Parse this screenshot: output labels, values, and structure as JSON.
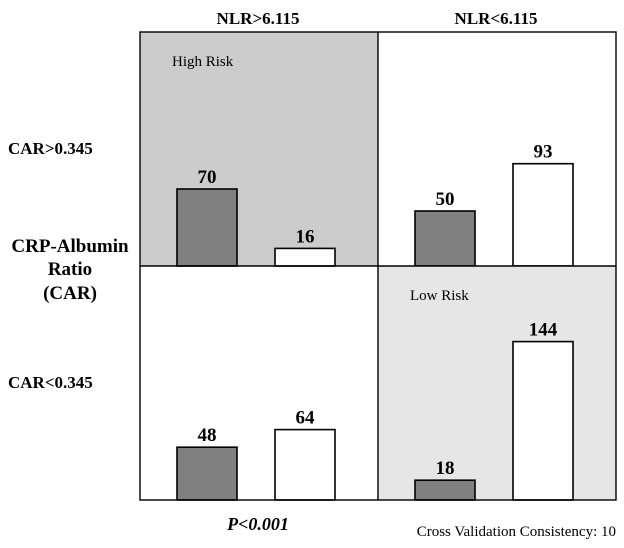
{
  "chart_data": {
    "type": "bar",
    "columns": [
      "NLR>6.115",
      "NLR<6.115"
    ],
    "rows": [
      "CAR>0.345",
      "CAR<0.345"
    ],
    "row_axis_title": [
      "CRP-Albumin",
      "Ratio",
      "(CAR)"
    ],
    "cells": [
      {
        "row": "CAR>0.345",
        "col": "NLR>6.115",
        "label": "High Risk",
        "shaded": "#cccccc",
        "series": [
          {
            "name": "dark",
            "value": 70
          },
          {
            "name": "light",
            "value": 16
          }
        ]
      },
      {
        "row": "CAR>0.345",
        "col": "NLR<6.115",
        "label": "",
        "shaded": null,
        "series": [
          {
            "name": "dark",
            "value": 50
          },
          {
            "name": "light",
            "value": 93
          }
        ]
      },
      {
        "row": "CAR<0.345",
        "col": "NLR>6.115",
        "label": "",
        "shaded": null,
        "series": [
          {
            "name": "dark",
            "value": 48
          },
          {
            "name": "light",
            "value": 64
          }
        ]
      },
      {
        "row": "CAR<0.345",
        "col": "NLR<6.115",
        "label": "Low Risk",
        "shaded": "#e6e6e6",
        "series": [
          {
            "name": "dark",
            "value": 18
          },
          {
            "name": "light",
            "value": 144
          }
        ]
      }
    ],
    "bar_colors": {
      "dark": "#808080",
      "light": "#ffffff"
    },
    "ylim": [
      0,
      160
    ]
  },
  "footer": {
    "p_value": "P<0.001",
    "cross_validation": "Cross Validation Consistency: 10"
  }
}
